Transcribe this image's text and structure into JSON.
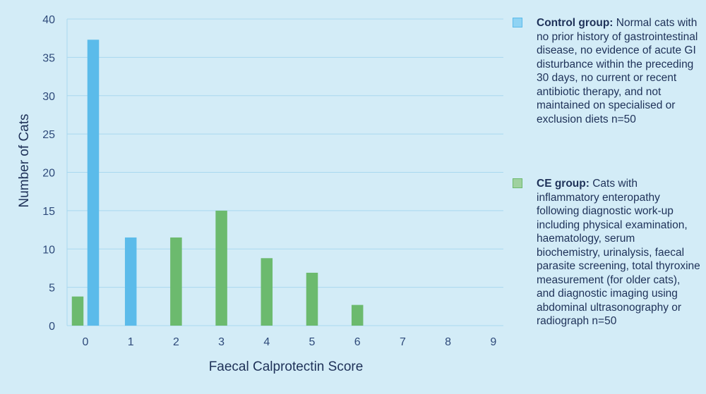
{
  "chart_data": {
    "type": "bar",
    "xlabel": "Faecal Calprotectin Score",
    "ylabel": "Number of Cats",
    "categories": [
      "0",
      "1",
      "2",
      "3",
      "4",
      "5",
      "6",
      "7",
      "8",
      "9"
    ],
    "ylim": [
      0,
      40
    ],
    "yticks": [
      "0",
      "5",
      "10",
      "15",
      "20",
      "25",
      "30",
      "35",
      "40"
    ],
    "grid": true,
    "legend_position": "right",
    "series": [
      {
        "name": "Control group",
        "color": "#5bbbea",
        "values": [
          37.3,
          11.5,
          0,
          0,
          0,
          0,
          0,
          0,
          0,
          0
        ]
      },
      {
        "name": "CE group",
        "color": "#6cba6e",
        "values": [
          3.8,
          0,
          11.5,
          15,
          8.8,
          6.9,
          2.7,
          0,
          0,
          0
        ]
      }
    ]
  },
  "legend": [
    {
      "label": "Control group:",
      "description": "Normal cats with no prior history of gastrointestinal disease, no evidence of acute GI disturbance within the preceding 30 days, no current or recent antibiotic therapy, and not maintained on specialised or exclusion diets n=50",
      "color": "#8fd3f4",
      "border_color": "#5bbbea"
    },
    {
      "label": "CE group:",
      "description": "Cats with inflammatory enteropathy following diagnostic work-up including physical examination, haematology, serum biochemistry, urinalysis, faecal parasite screening, total thyroxine measurement (for older cats), and diagnostic imaging using abdominal ultrasonography or radiograph n=50",
      "color": "#9fd19f",
      "border_color": "#6cba6e"
    }
  ]
}
